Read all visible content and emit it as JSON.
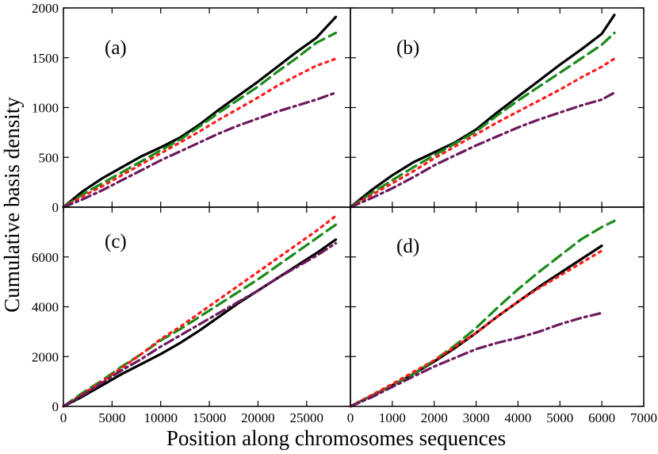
{
  "figure": {
    "ylabel": "Cumulative basis density",
    "xlabel": "Position along chromosomes sequences"
  },
  "chart_data": [
    {
      "type": "line",
      "panel": "(a)",
      "x": [
        0,
        2000,
        4000,
        6000,
        8000,
        10000,
        12000,
        14000,
        16000,
        18000,
        20000,
        22000,
        24000,
        26000,
        28000
      ],
      "xlim": [
        0,
        29500
      ],
      "ylim": [
        0,
        2000
      ],
      "yticks": [
        0,
        500,
        1000,
        1500,
        2000
      ],
      "series": [
        {
          "name": "solid",
          "color": "#000000",
          "dash": "",
          "values": [
            0,
            160,
            290,
            400,
            510,
            600,
            700,
            830,
            980,
            1120,
            1260,
            1410,
            1560,
            1700,
            1910
          ]
        },
        {
          "name": "dashed",
          "color": "#1a8a1a",
          "dash": "14 7",
          "values": [
            0,
            130,
            240,
            350,
            460,
            570,
            680,
            810,
            950,
            1080,
            1210,
            1360,
            1500,
            1650,
            1750
          ]
        },
        {
          "name": "dotted",
          "color": "#ff1a1a",
          "dash": "3 6",
          "values": [
            0,
            110,
            210,
            320,
            430,
            540,
            650,
            760,
            880,
            990,
            1100,
            1220,
            1320,
            1420,
            1490
          ]
        },
        {
          "name": "dash-dot",
          "color": "#6b1a5c",
          "dash": "12 5 3 5",
          "values": [
            0,
            80,
            170,
            270,
            370,
            470,
            560,
            650,
            740,
            820,
            890,
            960,
            1020,
            1080,
            1150
          ]
        }
      ]
    },
    {
      "type": "line",
      "panel": "(b)",
      "x": [
        0,
        500,
        1000,
        1500,
        2000,
        2500,
        3000,
        3500,
        4000,
        4500,
        5000,
        5500,
        6000,
        6300
      ],
      "xlim": [
        0,
        7000
      ],
      "ylim": [
        0,
        2000
      ],
      "yticks": [
        0,
        500,
        1000,
        1500,
        2000
      ],
      "series": [
        {
          "name": "solid",
          "color": "#000000",
          "dash": "",
          "values": [
            0,
            170,
            320,
            450,
            550,
            650,
            780,
            950,
            1110,
            1270,
            1430,
            1580,
            1740,
            1930
          ]
        },
        {
          "name": "dashed",
          "color": "#1a8a1a",
          "dash": "14 7",
          "values": [
            0,
            140,
            270,
            400,
            520,
            640,
            760,
            920,
            1070,
            1210,
            1350,
            1490,
            1630,
            1750
          ]
        },
        {
          "name": "dotted",
          "color": "#ff1a1a",
          "dash": "3 6",
          "values": [
            0,
            120,
            240,
            360,
            490,
            610,
            730,
            850,
            960,
            1070,
            1180,
            1300,
            1410,
            1490
          ]
        },
        {
          "name": "dash-dot",
          "color": "#6b1a5c",
          "dash": "12 5 3 5",
          "values": [
            0,
            90,
            190,
            300,
            420,
            520,
            620,
            710,
            800,
            880,
            950,
            1020,
            1080,
            1150
          ]
        }
      ]
    },
    {
      "type": "line",
      "panel": "(c)",
      "x": [
        0,
        2000,
        4000,
        6000,
        8000,
        10000,
        12000,
        14000,
        16000,
        18000,
        20000,
        22000,
        24000,
        26000,
        28000
      ],
      "xticks": [
        0,
        5000,
        10000,
        15000,
        20000,
        25000
      ],
      "xlim": [
        0,
        29500
      ],
      "ylim": [
        0,
        8000
      ],
      "yticks": [
        0,
        2000,
        4000,
        6000
      ],
      "series": [
        {
          "name": "solid",
          "color": "#000000",
          "dash": "",
          "values": [
            0,
            400,
            850,
            1300,
            1700,
            2100,
            2550,
            3050,
            3600,
            4150,
            4650,
            5150,
            5650,
            6150,
            6700
          ]
        },
        {
          "name": "dashed",
          "color": "#1a8a1a",
          "dash": "14 7",
          "values": [
            0,
            550,
            1050,
            1600,
            2100,
            2650,
            3100,
            3600,
            4100,
            4600,
            5100,
            5650,
            6200,
            6750,
            7300
          ]
        },
        {
          "name": "dotted",
          "color": "#ff1a1a",
          "dash": "3 6",
          "values": [
            0,
            500,
            1000,
            1550,
            2100,
            2700,
            3200,
            3750,
            4300,
            4850,
            5400,
            5950,
            6500,
            7050,
            7650
          ]
        },
        {
          "name": "dash-dot",
          "color": "#6b1a5c",
          "dash": "12 5 3 5",
          "values": [
            0,
            450,
            950,
            1450,
            1900,
            2400,
            2850,
            3300,
            3750,
            4200,
            4650,
            5150,
            5600,
            6050,
            6550
          ]
        }
      ]
    },
    {
      "type": "line",
      "panel": "(d)",
      "x": [
        0,
        500,
        1000,
        1500,
        2000,
        2500,
        3000,
        3500,
        4000,
        4500,
        5000,
        5500,
        6000,
        6300
      ],
      "xticks": [
        0,
        1000,
        2000,
        3000,
        4000,
        5000,
        6000,
        7000
      ],
      "xlim": [
        0,
        7000
      ],
      "ylim": [
        0,
        8000
      ],
      "yticks": [
        0,
        2000,
        4000,
        6000
      ],
      "series": [
        {
          "name": "solid",
          "color": "#000000",
          "dash": "",
          "values": [
            0,
            420,
            850,
            1300,
            1800,
            2350,
            2950,
            3600,
            4200,
            4800,
            5350,
            5900,
            6450,
            null
          ]
        },
        {
          "name": "dashed",
          "color": "#1a8a1a",
          "dash": "14 7",
          "values": [
            0,
            420,
            850,
            1300,
            1850,
            2450,
            3150,
            3950,
            4700,
            5400,
            6050,
            6700,
            7200,
            7450
          ]
        },
        {
          "name": "dotted",
          "color": "#ff1a1a",
          "dash": "3 6",
          "values": [
            0,
            450,
            900,
            1380,
            1850,
            2400,
            2950,
            3600,
            4200,
            4750,
            5250,
            5750,
            6250,
            null
          ]
        },
        {
          "name": "dash-dot",
          "color": "#6b1a5c",
          "dash": "12 5 3 5",
          "values": [
            0,
            360,
            780,
            1200,
            1600,
            1950,
            2300,
            2550,
            2750,
            3000,
            3300,
            3550,
            3750,
            null
          ]
        }
      ]
    }
  ]
}
